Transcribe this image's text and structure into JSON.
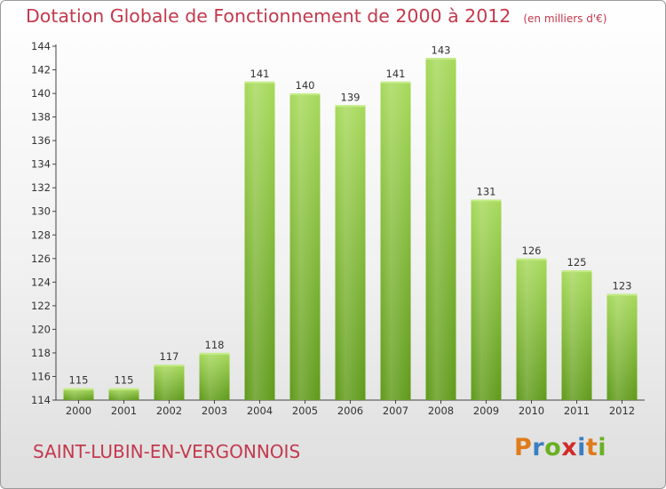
{
  "header": {
    "title": "Dotation Globale de Fonctionnement de 2000 à 2012",
    "unit": "(en milliers d'€)"
  },
  "footer": {
    "commune": "SAINT-LUBIN-EN-VERGONNOIS",
    "logo_letters": [
      "P",
      "r",
      "o",
      "x",
      "i",
      "t",
      "i"
    ],
    "logo_colors": [
      "#e07b1a",
      "#3a7fc1",
      "#6ab023",
      "#d22a2a",
      "#3a7fc1",
      "#e07b1a",
      "#6ab023"
    ]
  },
  "chart_data": {
    "type": "bar",
    "title": "Dotation Globale de Fonctionnement de 2000 à 2012",
    "subtitle": "(en milliers d'€)",
    "xlabel": "",
    "ylabel": "",
    "categories": [
      "2000",
      "2001",
      "2002",
      "2003",
      "2004",
      "2005",
      "2006",
      "2007",
      "2008",
      "2009",
      "2010",
      "2011",
      "2012"
    ],
    "values": [
      115,
      115,
      117,
      118,
      141,
      140,
      139,
      141,
      143,
      131,
      126,
      125,
      123
    ],
    "ylim": [
      114,
      144
    ],
    "yticks": [
      114,
      116,
      118,
      120,
      122,
      124,
      126,
      128,
      130,
      132,
      134,
      136,
      138,
      140,
      142,
      144
    ],
    "grid": false,
    "legend": "none",
    "bar_color": "#8cc63f",
    "bar_color_light": "#a6d95a",
    "bar_color_dark": "#5f9a1a"
  }
}
